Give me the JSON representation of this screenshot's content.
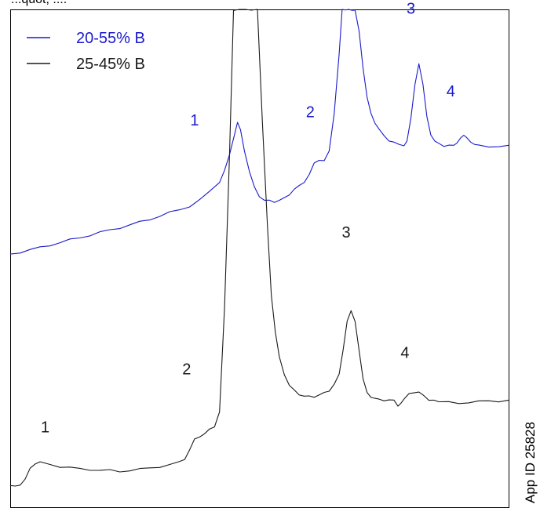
{
  "header_fragment": "...quot; ....",
  "app_id": "App ID 25828",
  "chart_data": {
    "type": "line",
    "title": "",
    "xlabel": "",
    "ylabel": "",
    "grid": false,
    "axes": false,
    "legend_placement": "top-left",
    "series": [
      {
        "name": "20-55% B",
        "color": "#1a1acc",
        "points": [
          [
            0,
            58
          ],
          [
            10,
            58.5
          ],
          [
            20,
            59
          ],
          [
            30,
            59.6
          ],
          [
            40,
            60.2
          ],
          [
            50,
            60.8
          ],
          [
            60,
            61.4
          ],
          [
            70,
            62
          ],
          [
            80,
            62.6
          ],
          [
            90,
            63.2
          ],
          [
            100,
            63.8
          ],
          [
            110,
            64.4
          ],
          [
            120,
            65
          ],
          [
            130,
            65.7
          ],
          [
            140,
            66.4
          ],
          [
            150,
            67.2
          ],
          [
            160,
            68
          ],
          [
            170,
            68.7
          ],
          [
            180,
            69.6
          ],
          [
            190,
            71
          ],
          [
            200,
            73
          ],
          [
            210,
            75.5
          ],
          [
            215,
            78
          ],
          [
            220,
            82
          ],
          [
            225,
            87
          ],
          [
            228,
            90
          ],
          [
            231,
            88
          ],
          [
            235,
            83
          ],
          [
            240,
            78
          ],
          [
            245,
            74
          ],
          [
            250,
            72
          ],
          [
            255,
            71
          ],
          [
            260,
            70.8
          ],
          [
            265,
            70.7
          ],
          [
            270,
            70.9
          ],
          [
            275,
            71.5
          ],
          [
            280,
            72.5
          ],
          [
            285,
            73.5
          ],
          [
            290,
            74.5
          ],
          [
            295,
            75.5
          ],
          [
            300,
            77
          ],
          [
            305,
            80
          ],
          [
            310,
            80.8
          ],
          [
            315,
            80.3
          ],
          [
            320,
            83
          ],
          [
            325,
            92
          ],
          [
            330,
            106
          ],
          [
            333,
            117
          ],
          [
            336,
            117
          ],
          [
            340,
            117
          ],
          [
            343,
            117
          ],
          [
            346,
            117
          ],
          [
            350,
            112
          ],
          [
            354,
            103
          ],
          [
            358,
            96
          ],
          [
            362,
            92
          ],
          [
            366,
            89.5
          ],
          [
            370,
            88
          ],
          [
            375,
            86.5
          ],
          [
            380,
            85.5
          ],
          [
            385,
            84.8
          ],
          [
            390,
            84.5
          ],
          [
            395,
            84.3
          ],
          [
            398,
            85.5
          ],
          [
            402,
            91
          ],
          [
            406,
            99
          ],
          [
            410,
            104
          ],
          [
            414,
            99
          ],
          [
            418,
            91
          ],
          [
            422,
            86.5
          ],
          [
            426,
            85
          ],
          [
            430,
            84.5
          ],
          [
            435,
            84.2
          ],
          [
            440,
            84.2
          ],
          [
            445,
            84.1
          ],
          [
            448,
            84.5
          ],
          [
            452,
            85.8
          ],
          [
            455,
            86.5
          ],
          [
            458,
            86.2
          ],
          [
            462,
            85
          ],
          [
            466,
            84.3
          ],
          [
            470,
            84.1
          ],
          [
            480,
            84
          ],
          [
            490,
            84
          ],
          [
            500,
            84
          ]
        ]
      },
      {
        "name": "25-45% B",
        "color": "#1a1a1a",
        "points": [
          [
            0,
            2
          ],
          [
            5,
            2.1
          ],
          [
            10,
            2.5
          ],
          [
            15,
            3.5
          ],
          [
            20,
            6.5
          ],
          [
            25,
            7.5
          ],
          [
            30,
            7.7
          ],
          [
            40,
            7.3
          ],
          [
            50,
            6.8
          ],
          [
            60,
            6.5
          ],
          [
            70,
            6.2
          ],
          [
            80,
            6.1
          ],
          [
            90,
            5.9
          ],
          [
            100,
            5.8
          ],
          [
            110,
            5.6
          ],
          [
            120,
            5.9
          ],
          [
            130,
            6.1
          ],
          [
            140,
            6.4
          ],
          [
            150,
            6.8
          ],
          [
            160,
            7.2
          ],
          [
            170,
            7.8
          ],
          [
            175,
            8.5
          ],
          [
            180,
            11
          ],
          [
            185,
            13.2
          ],
          [
            190,
            14
          ],
          [
            195,
            14.8
          ],
          [
            200,
            15.6
          ],
          [
            205,
            16.5
          ],
          [
            210,
            20
          ],
          [
            215,
            45
          ],
          [
            220,
            82
          ],
          [
            224,
            117
          ],
          [
            230,
            117
          ],
          [
            236,
            117
          ],
          [
            242,
            117
          ],
          [
            248,
            117
          ],
          [
            253,
            90
          ],
          [
            258,
            65
          ],
          [
            262,
            48
          ],
          [
            266,
            39
          ],
          [
            270,
            33
          ],
          [
            275,
            29
          ],
          [
            280,
            26.5
          ],
          [
            285,
            25
          ],
          [
            290,
            24.2
          ],
          [
            295,
            23.8
          ],
          [
            300,
            23.6
          ],
          [
            305,
            23.7
          ],
          [
            310,
            24
          ],
          [
            315,
            24.5
          ],
          [
            320,
            25.2
          ],
          [
            325,
            26.5
          ],
          [
            330,
            29
          ],
          [
            334,
            35
          ],
          [
            338,
            42
          ],
          [
            342,
            44.6
          ],
          [
            346,
            42
          ],
          [
            350,
            35
          ],
          [
            354,
            28
          ],
          [
            358,
            24.6
          ],
          [
            362,
            23.3
          ],
          [
            366,
            23
          ],
          [
            370,
            22.8
          ],
          [
            375,
            22.8
          ],
          [
            380,
            22.9
          ],
          [
            385,
            22.6
          ],
          [
            389,
            21.2
          ],
          [
            392,
            21.8
          ],
          [
            395,
            23
          ],
          [
            400,
            24.2
          ],
          [
            405,
            24.8
          ],
          [
            410,
            24.6
          ],
          [
            415,
            23.8
          ],
          [
            420,
            23
          ],
          [
            425,
            22.6
          ],
          [
            430,
            22.4
          ],
          [
            440,
            22.2
          ],
          [
            450,
            22.1
          ],
          [
            460,
            22.3
          ],
          [
            470,
            22.4
          ],
          [
            480,
            22.6
          ],
          [
            490,
            22.6
          ],
          [
            500,
            22.7
          ]
        ]
      }
    ],
    "peak_labels": [
      {
        "series": "20-55% B",
        "text": "1",
        "x": 185,
        "y": 89
      },
      {
        "series": "20-55% B",
        "text": "2",
        "x": 301,
        "y": 91
      },
      {
        "series": "20-55% B",
        "text": "3",
        "x": 402,
        "y": 116
      },
      {
        "series": "20-55% B",
        "text": "4",
        "x": 442,
        "y": 96
      },
      {
        "series": "25-45% B",
        "text": "1",
        "x": 35,
        "y": 15
      },
      {
        "series": "25-45% B",
        "text": "2",
        "x": 177,
        "y": 29
      },
      {
        "series": "25-45% B",
        "text": "3",
        "x": 337,
        "y": 62
      },
      {
        "series": "25-45% B",
        "text": "4",
        "x": 396,
        "y": 33
      }
    ],
    "xlim": [
      0,
      500
    ],
    "ylim": [
      0,
      117
    ]
  }
}
